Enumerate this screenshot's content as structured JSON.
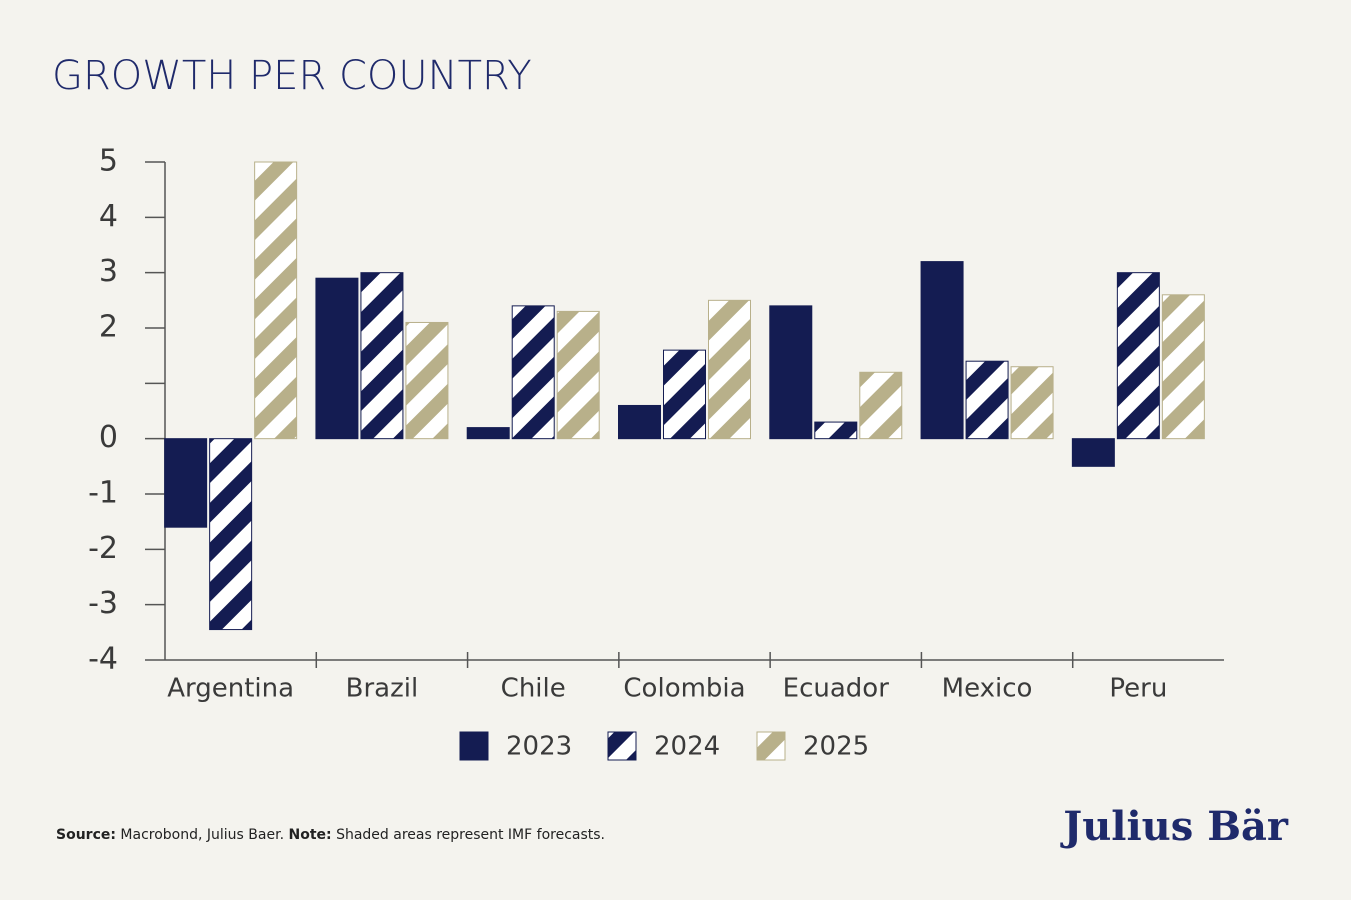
{
  "chart_data": {
    "type": "bar",
    "title": "GROWTH PER COUNTRY",
    "categories": [
      "Argentina",
      "Brazil",
      "Chile",
      "Colombia",
      "Ecuador",
      "Mexico",
      "Peru"
    ],
    "series": [
      {
        "name": "2023",
        "color": "#141c52",
        "values": [
          -1.6,
          2.9,
          0.2,
          0.6,
          2.4,
          3.2,
          -0.5
        ]
      },
      {
        "name": "2024",
        "color": "#141c52",
        "values": [
          -3.45,
          3.0,
          2.4,
          1.6,
          0.3,
          1.4,
          3.0
        ]
      },
      {
        "name": "2025",
        "color": "#b8b08a",
        "values": [
          5.0,
          2.1,
          2.3,
          2.5,
          1.2,
          1.3,
          2.6
        ]
      }
    ],
    "ylim": [
      -4,
      5
    ],
    "yticks": [
      5,
      4,
      3,
      2,
      {
        "value": 1,
        "label": null
      },
      0,
      -1,
      -2,
      -3,
      -4
    ],
    "grid": false,
    "legend": "bottom",
    "footnote": {
      "source_label": "Source:",
      "source": "Macrobond, Julius Baer.",
      "note_label": "Note:",
      "note": "Shaded areas represent IMF forecasts."
    },
    "brand": "Julius Bär"
  }
}
